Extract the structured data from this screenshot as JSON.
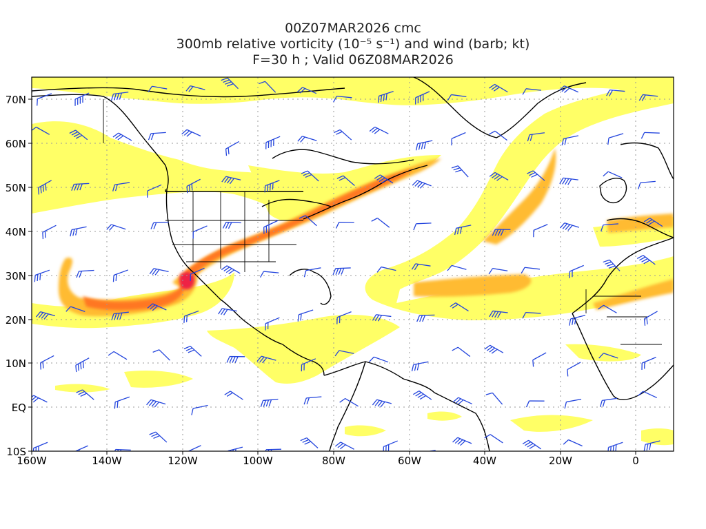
{
  "title": {
    "line1": "00Z07MAR2026 cmc",
    "line2": "300mb relative vorticity (10⁻⁵ s⁻¹) and wind (barb; kt)",
    "line3": "F=30 h ; Valid 06Z08MAR2026"
  },
  "axes": {
    "x_ticks": [
      "160W",
      "140W",
      "120W",
      "100W",
      "80W",
      "60W",
      "40W",
      "20W",
      "0"
    ],
    "y_ticks": [
      "70N",
      "60N",
      "50N",
      "40N",
      "30N",
      "20N",
      "10N",
      "EQ",
      "10S"
    ]
  },
  "map": {
    "lon_range": [
      -160,
      10
    ],
    "lat_range": [
      -10,
      75
    ],
    "grid": true
  },
  "colors": {
    "low": "#ffff66",
    "light": "#ffee44",
    "mid": "#ffbb33",
    "high": "#ff7722",
    "peak": "#ee2244",
    "barb": "#2244dd",
    "coast": "#000000",
    "grid": "#999999"
  }
}
